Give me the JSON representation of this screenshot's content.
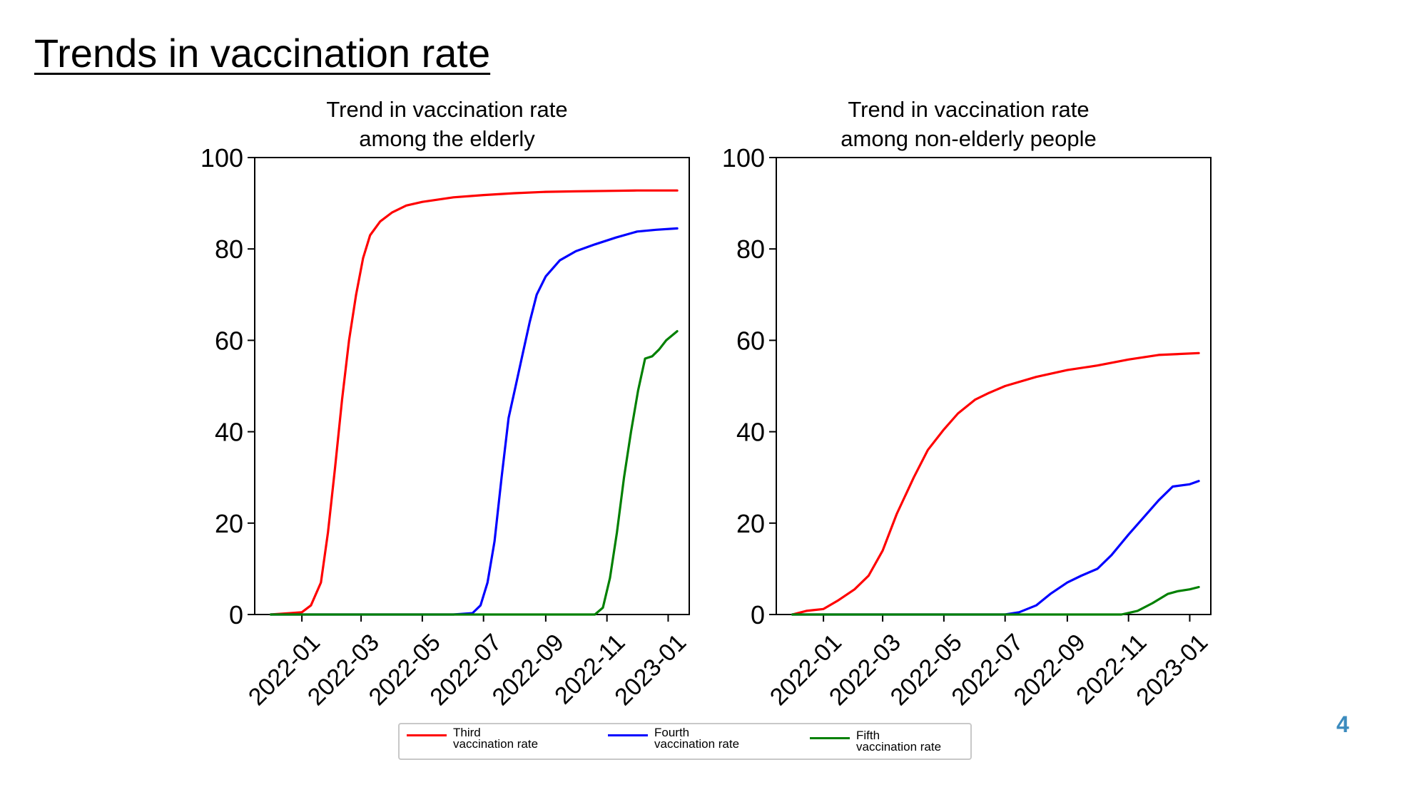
{
  "slide": {
    "title": "Trends in vaccination rate",
    "page_number": "4"
  },
  "legend": {
    "items": [
      {
        "label_line1": "Third",
        "label_line2": "vaccination rate",
        "color": "#ff0000"
      },
      {
        "label_line1": "Fourth",
        "label_line2": "vaccination rate",
        "color": "#0000ff"
      },
      {
        "label_line1": "Fifth",
        "label_line2": "vaccination rate",
        "color": "#008000"
      }
    ]
  },
  "chart_data": [
    {
      "type": "line",
      "title_lines": [
        "Trend in vaccination rate",
        "among the elderly"
      ],
      "xlabel": "",
      "ylabel": "",
      "x_ticks": [
        "2022-01",
        "2022-03",
        "2022-05",
        "2022-07",
        "2022-09",
        "2022-11",
        "2023-01"
      ],
      "ylim": [
        0,
        100
      ],
      "y_ticks": [
        0,
        20,
        40,
        60,
        80,
        100
      ],
      "grid": false,
      "series": [
        {
          "name": "Third vaccination rate",
          "color": "#ff0000",
          "points": [
            [
              "2021-12-01",
              0
            ],
            [
              "2021-12-20",
              0.3
            ],
            [
              "2022-01-01",
              0.5
            ],
            [
              "2022-01-10",
              2
            ],
            [
              "2022-01-20",
              7
            ],
            [
              "2022-01-27",
              18
            ],
            [
              "2022-02-03",
              32
            ],
            [
              "2022-02-10",
              47
            ],
            [
              "2022-02-17",
              60
            ],
            [
              "2022-02-24",
              70
            ],
            [
              "2022-03-03",
              78
            ],
            [
              "2022-03-10",
              83
            ],
            [
              "2022-03-20",
              86
            ],
            [
              "2022-04-01",
              88
            ],
            [
              "2022-04-15",
              89.5
            ],
            [
              "2022-05-01",
              90.3
            ],
            [
              "2022-06-01",
              91.3
            ],
            [
              "2022-07-01",
              91.8
            ],
            [
              "2022-08-01",
              92.2
            ],
            [
              "2022-09-01",
              92.5
            ],
            [
              "2022-10-01",
              92.6
            ],
            [
              "2022-11-01",
              92.7
            ],
            [
              "2022-12-01",
              92.8
            ],
            [
              "2023-01-10",
              92.8
            ]
          ]
        },
        {
          "name": "Fourth vaccination rate",
          "color": "#0000ff",
          "points": [
            [
              "2021-12-01",
              0
            ],
            [
              "2022-06-01",
              0
            ],
            [
              "2022-06-20",
              0.3
            ],
            [
              "2022-06-28",
              2
            ],
            [
              "2022-07-05",
              7
            ],
            [
              "2022-07-12",
              16
            ],
            [
              "2022-07-19",
              30
            ],
            [
              "2022-07-26",
              43
            ],
            [
              "2022-08-02",
              50
            ],
            [
              "2022-08-09",
              57
            ],
            [
              "2022-08-16",
              64
            ],
            [
              "2022-08-23",
              70
            ],
            [
              "2022-09-01",
              74
            ],
            [
              "2022-09-15",
              77.5
            ],
            [
              "2022-10-01",
              79.5
            ],
            [
              "2022-10-20",
              81
            ],
            [
              "2022-11-10",
              82.5
            ],
            [
              "2022-12-01",
              83.8
            ],
            [
              "2022-12-20",
              84.2
            ],
            [
              "2023-01-10",
              84.5
            ]
          ]
        },
        {
          "name": "Fifth vaccination rate",
          "color": "#008000",
          "points": [
            [
              "2021-12-01",
              0
            ],
            [
              "2022-10-20",
              0
            ],
            [
              "2022-10-28",
              1.5
            ],
            [
              "2022-11-04",
              8
            ],
            [
              "2022-11-11",
              18
            ],
            [
              "2022-11-18",
              30
            ],
            [
              "2022-11-25",
              40
            ],
            [
              "2022-12-02",
              49
            ],
            [
              "2022-12-09",
              56
            ],
            [
              "2022-12-16",
              56.5
            ],
            [
              "2022-12-23",
              58
            ],
            [
              "2022-12-30",
              60
            ],
            [
              "2023-01-10",
              62
            ]
          ]
        }
      ]
    },
    {
      "type": "line",
      "title_lines": [
        "Trend in vaccination rate",
        "among non-elderly people"
      ],
      "xlabel": "",
      "ylabel": "",
      "x_ticks": [
        "2022-01",
        "2022-03",
        "2022-05",
        "2022-07",
        "2022-09",
        "2022-11",
        "2023-01"
      ],
      "ylim": [
        0,
        100
      ],
      "y_ticks": [
        0,
        20,
        40,
        60,
        80,
        100
      ],
      "grid": false,
      "series": [
        {
          "name": "Third vaccination rate",
          "color": "#ff0000",
          "points": [
            [
              "2021-12-01",
              0
            ],
            [
              "2021-12-15",
              0.8
            ],
            [
              "2022-01-01",
              1.2
            ],
            [
              "2022-01-15",
              3
            ],
            [
              "2022-02-01",
              5.5
            ],
            [
              "2022-02-15",
              8.5
            ],
            [
              "2022-03-01",
              14
            ],
            [
              "2022-03-15",
              22
            ],
            [
              "2022-04-01",
              30
            ],
            [
              "2022-04-15",
              36
            ],
            [
              "2022-05-01",
              40.5
            ],
            [
              "2022-05-15",
              44
            ],
            [
              "2022-06-01",
              47
            ],
            [
              "2022-06-15",
              48.5
            ],
            [
              "2022-07-01",
              50
            ],
            [
              "2022-08-01",
              52
            ],
            [
              "2022-09-01",
              53.5
            ],
            [
              "2022-10-01",
              54.5
            ],
            [
              "2022-11-01",
              55.8
            ],
            [
              "2022-12-01",
              56.8
            ],
            [
              "2023-01-10",
              57.2
            ]
          ]
        },
        {
          "name": "Fourth vaccination rate",
          "color": "#0000ff",
          "points": [
            [
              "2021-12-01",
              0
            ],
            [
              "2022-07-01",
              0
            ],
            [
              "2022-07-15",
              0.5
            ],
            [
              "2022-08-01",
              2
            ],
            [
              "2022-08-15",
              4.5
            ],
            [
              "2022-09-01",
              7
            ],
            [
              "2022-09-15",
              8.5
            ],
            [
              "2022-10-01",
              10
            ],
            [
              "2022-10-15",
              13
            ],
            [
              "2022-11-01",
              17.5
            ],
            [
              "2022-11-15",
              21
            ],
            [
              "2022-12-01",
              25
            ],
            [
              "2022-12-15",
              28
            ],
            [
              "2023-01-01",
              28.5
            ],
            [
              "2023-01-10",
              29.2
            ]
          ]
        },
        {
          "name": "Fifth vaccination rate",
          "color": "#008000",
          "points": [
            [
              "2021-12-01",
              0
            ],
            [
              "2022-10-25",
              0
            ],
            [
              "2022-11-10",
              0.8
            ],
            [
              "2022-11-25",
              2.5
            ],
            [
              "2022-12-10",
              4.5
            ],
            [
              "2022-12-20",
              5.1
            ],
            [
              "2023-01-01",
              5.5
            ],
            [
              "2023-01-10",
              6
            ]
          ]
        }
      ]
    }
  ]
}
